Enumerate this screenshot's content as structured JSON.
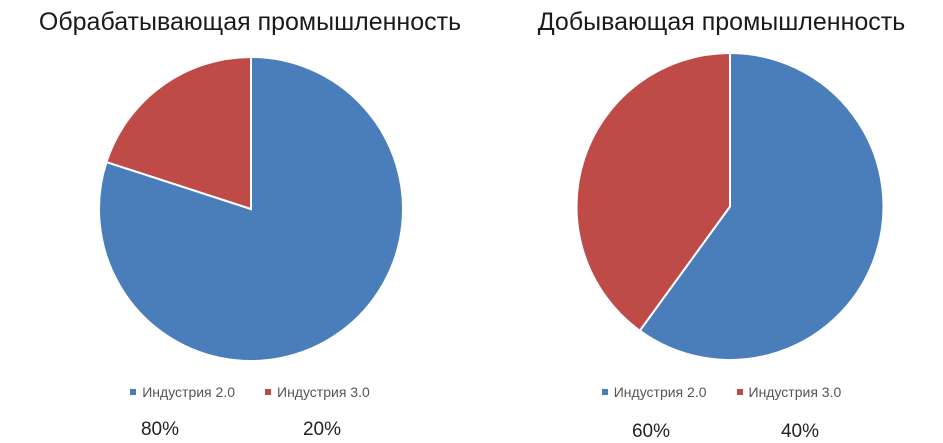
{
  "chart_data": [
    {
      "type": "pie",
      "title": "Обрабатывающая промышленность",
      "categories": [
        "Индустрия 2.0",
        "Индустрия 3.0"
      ],
      "values": [
        80,
        20
      ],
      "labels": [
        "80%",
        "20%"
      ],
      "colors": [
        "#4a7ebb",
        "#be4b48"
      ],
      "legend": "bottom"
    },
    {
      "type": "pie",
      "title": "Добывающая промышленность",
      "categories": [
        "Индустрия 2.0",
        "Индустрия 3.0"
      ],
      "values": [
        60,
        40
      ],
      "labels": [
        "60%",
        "40%"
      ],
      "colors": [
        "#4a7ebb",
        "#be4b48"
      ],
      "legend": "bottom"
    }
  ]
}
